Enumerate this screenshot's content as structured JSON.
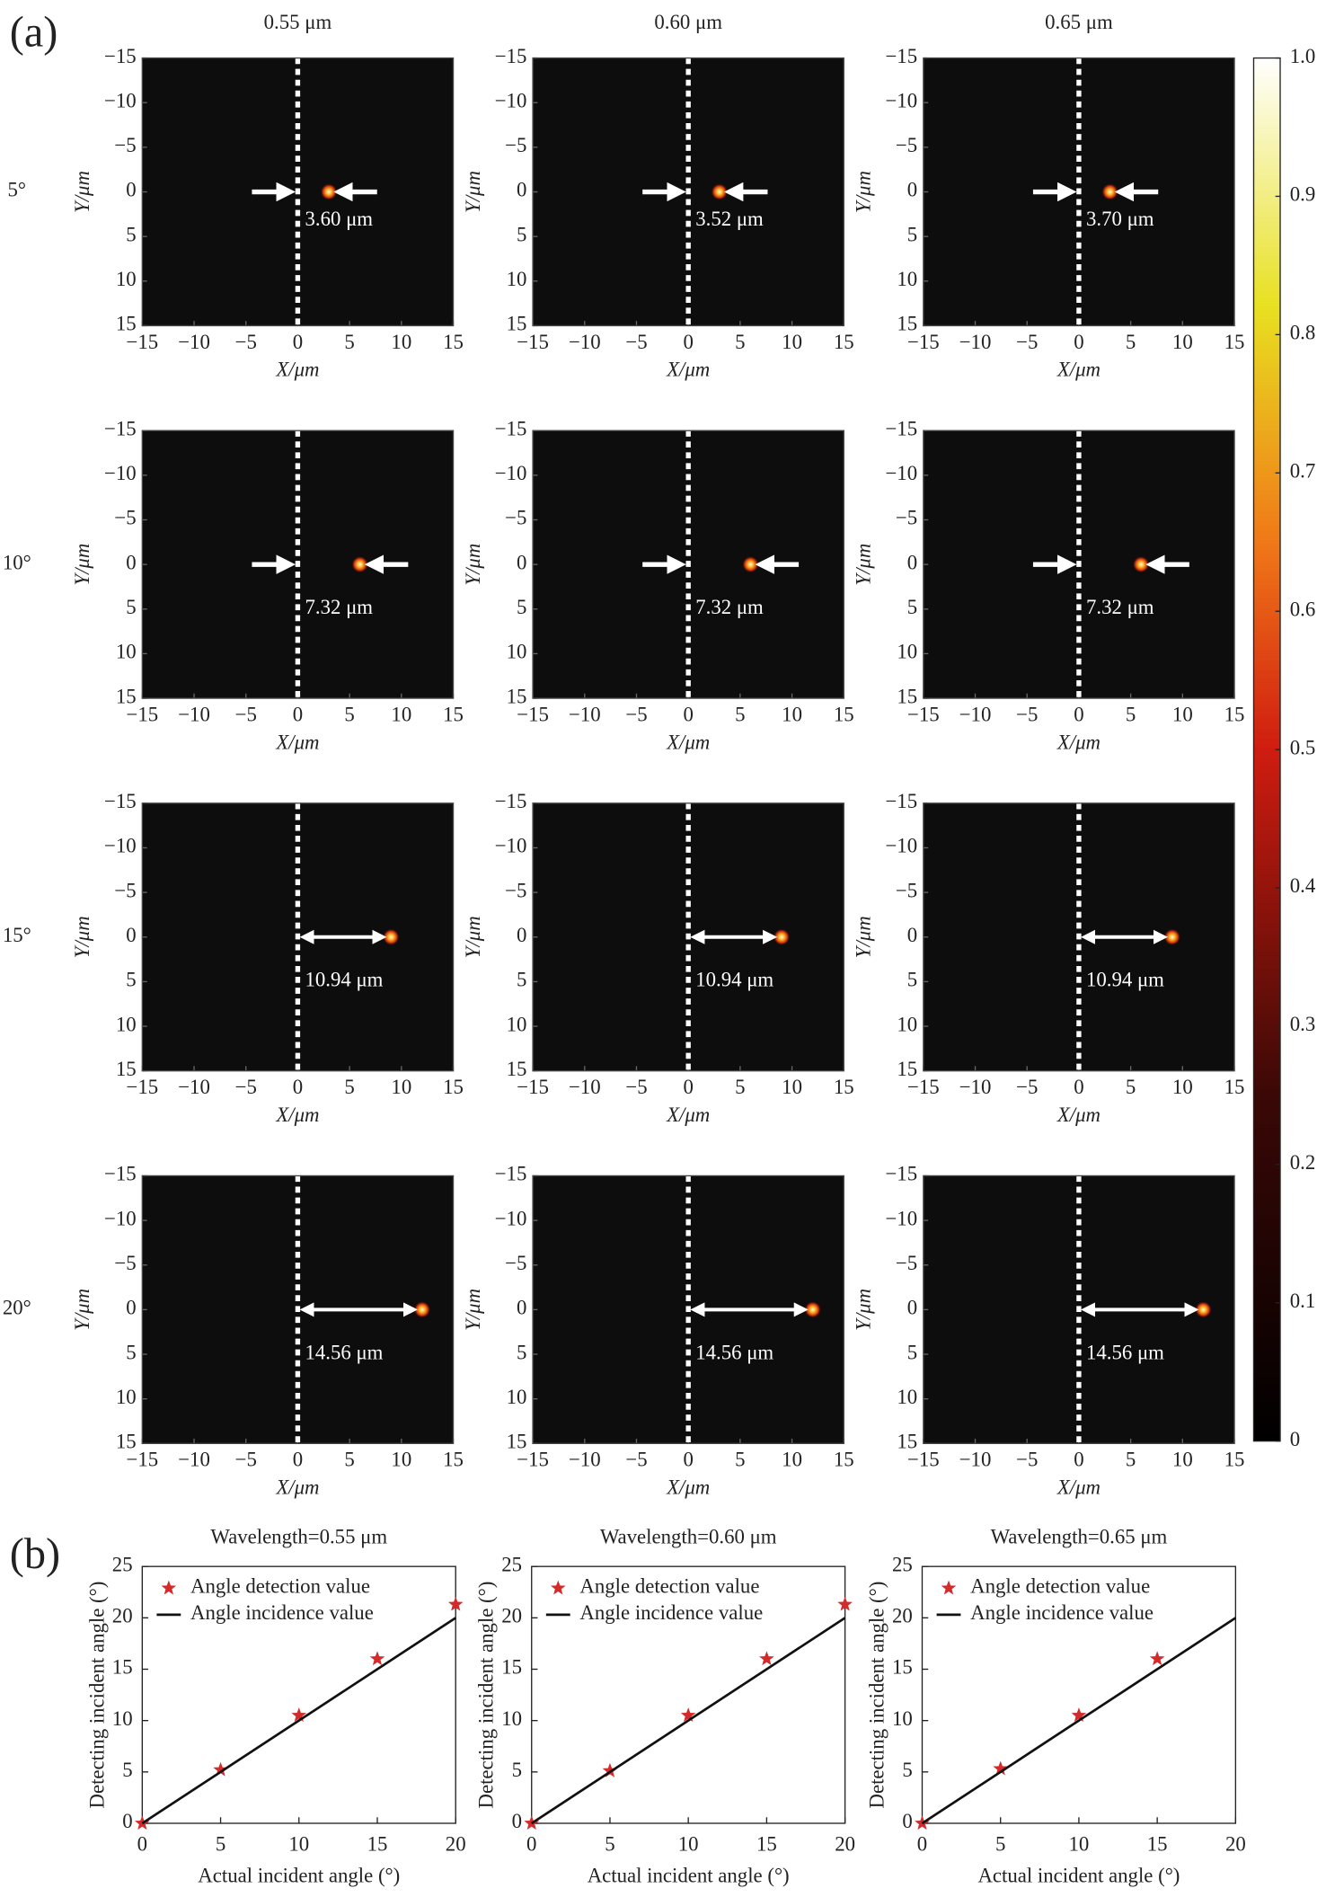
{
  "panel_labels": [
    "(a)",
    "(b)"
  ],
  "column_titles": [
    "0.55 μm",
    "0.60 μm",
    "0.65 μm"
  ],
  "row_labels": [
    "5°",
    "10°",
    "15°",
    "20°"
  ],
  "chart_data": [
    {
      "type": "heatmap",
      "xlabel": "X/μm",
      "ylabel": "Y/μm",
      "xlim": [
        -15,
        15
      ],
      "ylim": [
        15,
        -15
      ],
      "xticks": [
        {
          "value": -15,
          "label": "−15"
        },
        {
          "value": -10,
          "label": "−10"
        },
        {
          "value": -5,
          "label": "−5"
        },
        0,
        5,
        10,
        15
      ],
      "yticks": [
        {
          "value": -15,
          "label": "−15"
        },
        {
          "value": -10,
          "label": "−10"
        },
        {
          "value": -5,
          "label": "−5"
        },
        0,
        5,
        10,
        15
      ],
      "x": [
        3
      ],
      "y": [
        0
      ],
      "annotation": "3.60 μm"
    },
    {
      "type": "heatmap",
      "xlabel": "X/μm",
      "ylabel": "Y/μm",
      "xlim": [
        -15,
        15
      ],
      "ylim": [
        15,
        -15
      ],
      "xticks": [
        {
          "value": -15,
          "label": "−15"
        },
        {
          "value": -10,
          "label": "−10"
        },
        {
          "value": -5,
          "label": "−5"
        },
        0,
        5,
        10,
        15
      ],
      "yticks": [
        {
          "value": -15,
          "label": "−15"
        },
        {
          "value": -10,
          "label": "−10"
        },
        {
          "value": -5,
          "label": "−5"
        },
        0,
        5,
        10,
        15
      ],
      "x": [
        3
      ],
      "y": [
        0
      ],
      "annotation": "3.52 μm"
    },
    {
      "type": "heatmap",
      "xlabel": "X/μm",
      "ylabel": "Y/μm",
      "xlim": [
        -15,
        15
      ],
      "ylim": [
        15,
        -15
      ],
      "xticks": [
        {
          "value": -15,
          "label": "−15"
        },
        {
          "value": -10,
          "label": "−10"
        },
        {
          "value": -5,
          "label": "−5"
        },
        0,
        5,
        10,
        15
      ],
      "yticks": [
        {
          "value": -15,
          "label": "−15"
        },
        {
          "value": -10,
          "label": "−10"
        },
        {
          "value": -5,
          "label": "−5"
        },
        0,
        5,
        10,
        15
      ],
      "x": [
        3
      ],
      "y": [
        0
      ],
      "annotation": "3.70 μm"
    },
    {
      "type": "heatmap",
      "xlabel": "X/μm",
      "ylabel": "Y/μm",
      "xlim": [
        -15,
        15
      ],
      "ylim": [
        15,
        -15
      ],
      "xticks": [
        {
          "value": -15,
          "label": "−15"
        },
        {
          "value": -10,
          "label": "−10"
        },
        {
          "value": -5,
          "label": "−5"
        },
        0,
        5,
        10,
        15
      ],
      "yticks": [
        {
          "value": -15,
          "label": "−15"
        },
        {
          "value": -10,
          "label": "−10"
        },
        {
          "value": -5,
          "label": "−5"
        },
        0,
        5,
        10,
        15
      ],
      "x": [
        6
      ],
      "y": [
        0
      ],
      "annotation": "7.32 μm"
    },
    {
      "type": "heatmap",
      "xlabel": "X/μm",
      "ylabel": "Y/μm",
      "xlim": [
        -15,
        15
      ],
      "ylim": [
        15,
        -15
      ],
      "xticks": [
        {
          "value": -15,
          "label": "−15"
        },
        {
          "value": -10,
          "label": "−10"
        },
        {
          "value": -5,
          "label": "−5"
        },
        0,
        5,
        10,
        15
      ],
      "yticks": [
        {
          "value": -15,
          "label": "−15"
        },
        {
          "value": -10,
          "label": "−10"
        },
        {
          "value": -5,
          "label": "−5"
        },
        0,
        5,
        10,
        15
      ],
      "x": [
        6
      ],
      "y": [
        0
      ],
      "annotation": "7.32 μm"
    },
    {
      "type": "heatmap",
      "xlabel": "X/μm",
      "ylabel": "Y/μm",
      "xlim": [
        -15,
        15
      ],
      "ylim": [
        15,
        -15
      ],
      "xticks": [
        {
          "value": -15,
          "label": "−15"
        },
        {
          "value": -10,
          "label": "−10"
        },
        {
          "value": -5,
          "label": "−5"
        },
        0,
        5,
        10,
        15
      ],
      "yticks": [
        {
          "value": -15,
          "label": "−15"
        },
        {
          "value": -10,
          "label": "−10"
        },
        {
          "value": -5,
          "label": "−5"
        },
        0,
        5,
        10,
        15
      ],
      "x": [
        6
      ],
      "y": [
        0
      ],
      "annotation": "7.32 μm"
    },
    {
      "type": "heatmap",
      "xlabel": "X/μm",
      "ylabel": "Y/μm",
      "xlim": [
        -15,
        15
      ],
      "ylim": [
        15,
        -15
      ],
      "xticks": [
        {
          "value": -15,
          "label": "−15"
        },
        {
          "value": -10,
          "label": "−10"
        },
        {
          "value": -5,
          "label": "−5"
        },
        0,
        5,
        10,
        15
      ],
      "yticks": [
        {
          "value": -15,
          "label": "−15"
        },
        {
          "value": -10,
          "label": "−10"
        },
        {
          "value": -5,
          "label": "−5"
        },
        0,
        5,
        10,
        15
      ],
      "x": [
        9
      ],
      "y": [
        0
      ],
      "annotation": "10.94 μm"
    },
    {
      "type": "heatmap",
      "xlabel": "X/μm",
      "ylabel": "Y/μm",
      "xlim": [
        -15,
        15
      ],
      "ylim": [
        15,
        -15
      ],
      "xticks": [
        {
          "value": -15,
          "label": "−15"
        },
        {
          "value": -10,
          "label": "−10"
        },
        {
          "value": -5,
          "label": "−5"
        },
        0,
        5,
        10,
        15
      ],
      "yticks": [
        {
          "value": -15,
          "label": "−15"
        },
        {
          "value": -10,
          "label": "−10"
        },
        {
          "value": -5,
          "label": "−5"
        },
        0,
        5,
        10,
        15
      ],
      "x": [
        9
      ],
      "y": [
        0
      ],
      "annotation": "10.94 μm"
    },
    {
      "type": "heatmap",
      "xlabel": "X/μm",
      "ylabel": "Y/μm",
      "xlim": [
        -15,
        15
      ],
      "ylim": [
        15,
        -15
      ],
      "xticks": [
        {
          "value": -15,
          "label": "−15"
        },
        {
          "value": -10,
          "label": "−10"
        },
        {
          "value": -5,
          "label": "−5"
        },
        0,
        5,
        10,
        15
      ],
      "yticks": [
        {
          "value": -15,
          "label": "−15"
        },
        {
          "value": -10,
          "label": "−10"
        },
        {
          "value": -5,
          "label": "−5"
        },
        0,
        5,
        10,
        15
      ],
      "x": [
        9
      ],
      "y": [
        0
      ],
      "annotation": "10.94 μm"
    },
    {
      "type": "heatmap",
      "xlabel": "X/μm",
      "ylabel": "Y/μm",
      "xlim": [
        -15,
        15
      ],
      "ylim": [
        15,
        -15
      ],
      "xticks": [
        {
          "value": -15,
          "label": "−15"
        },
        {
          "value": -10,
          "label": "−10"
        },
        {
          "value": -5,
          "label": "−5"
        },
        0,
        5,
        10,
        15
      ],
      "yticks": [
        {
          "value": -15,
          "label": "−15"
        },
        {
          "value": -10,
          "label": "−10"
        },
        {
          "value": -5,
          "label": "−5"
        },
        0,
        5,
        10,
        15
      ],
      "x": [
        12
      ],
      "y": [
        0
      ],
      "annotation": "14.56 μm"
    },
    {
      "type": "heatmap",
      "xlabel": "X/μm",
      "ylabel": "Y/μm",
      "xlim": [
        -15,
        15
      ],
      "ylim": [
        15,
        -15
      ],
      "xticks": [
        {
          "value": -15,
          "label": "−15"
        },
        {
          "value": -10,
          "label": "−10"
        },
        {
          "value": -5,
          "label": "−5"
        },
        0,
        5,
        10,
        15
      ],
      "yticks": [
        {
          "value": -15,
          "label": "−15"
        },
        {
          "value": -10,
          "label": "−10"
        },
        {
          "value": -5,
          "label": "−5"
        },
        0,
        5,
        10,
        15
      ],
      "x": [
        12
      ],
      "y": [
        0
      ],
      "annotation": "14.56 μm"
    },
    {
      "type": "heatmap",
      "xlabel": "X/μm",
      "ylabel": "Y/μm",
      "xlim": [
        -15,
        15
      ],
      "ylim": [
        15,
        -15
      ],
      "xticks": [
        {
          "value": -15,
          "label": "−15"
        },
        {
          "value": -10,
          "label": "−10"
        },
        {
          "value": -5,
          "label": "−5"
        },
        0,
        5,
        10,
        15
      ],
      "yticks": [
        {
          "value": -15,
          "label": "−15"
        },
        {
          "value": -10,
          "label": "−10"
        },
        {
          "value": -5,
          "label": "−5"
        },
        0,
        5,
        10,
        15
      ],
      "x": [
        12
      ],
      "y": [
        0
      ],
      "annotation": "14.56 μm"
    },
    {
      "type": "colorbar",
      "ylim": [
        0,
        1
      ],
      "yticks": [
        0,
        0.1,
        0.2,
        0.3,
        0.4,
        0.5,
        0.6,
        0.7,
        0.8,
        0.9,
        {
          "value": 1,
          "label": "1.0"
        }
      ]
    },
    {
      "type": "line",
      "title": "Wavelength=0.55 μm",
      "xlabel": "Actual incident angle (°)",
      "ylabel": "Detecting incident angle (°)",
      "x": [
        0,
        5,
        10,
        15,
        20
      ],
      "xlim": [
        0,
        20
      ],
      "ylim": [
        0,
        25
      ],
      "xticks": [
        0,
        5,
        10,
        15,
        20
      ],
      "yticks": [
        0,
        5,
        10,
        15,
        20,
        25
      ],
      "legend": "upper left",
      "series": [
        {
          "name": "Angle detection value",
          "color": "#d42a2a",
          "marker": "star",
          "values": [
            0,
            5.2,
            10.5,
            16,
            21.3
          ]
        },
        {
          "name": "Angle incidence value",
          "color": "#111111",
          "values": [
            0,
            5,
            10,
            15,
            20
          ]
        }
      ]
    },
    {
      "type": "line",
      "title": "Wavelength=0.60 μm",
      "xlabel": "Actual incident angle (°)",
      "ylabel": "Detecting incident angle (°)",
      "x": [
        0,
        5,
        10,
        15,
        20
      ],
      "xlim": [
        0,
        20
      ],
      "ylim": [
        0,
        25
      ],
      "xticks": [
        0,
        5,
        10,
        15,
        20
      ],
      "yticks": [
        0,
        5,
        10,
        15,
        20,
        25
      ],
      "legend": "upper left",
      "series": [
        {
          "name": "Angle detection value",
          "color": "#d42a2a",
          "marker": "star",
          "values": [
            0,
            5.1,
            10.5,
            16,
            21.3
          ]
        },
        {
          "name": "Angle incidence value",
          "color": "#111111",
          "values": [
            0,
            5,
            10,
            15,
            20
          ]
        }
      ]
    },
    {
      "type": "line",
      "title": "Wavelength=0.65 μm",
      "xlabel": "Actual incident angle (°)",
      "ylabel": "Detecting incident angle (°)",
      "x": [
        0,
        5,
        10,
        15,
        20
      ],
      "xlim": [
        0,
        20
      ],
      "ylim": [
        0,
        25
      ],
      "xticks": [
        0,
        5,
        10,
        15,
        20
      ],
      "yticks": [
        0,
        5,
        10,
        15,
        20,
        25
      ],
      "legend": "upper left",
      "series": [
        {
          "name": "Angle detection value",
          "color": "#d42a2a",
          "marker": "star",
          "values": [
            0,
            5.3,
            10.5,
            16,
            null
          ]
        },
        {
          "name": "Angle incidence value",
          "color": "#111111",
          "values": [
            0,
            5,
            10,
            15,
            20
          ]
        }
      ]
    }
  ]
}
